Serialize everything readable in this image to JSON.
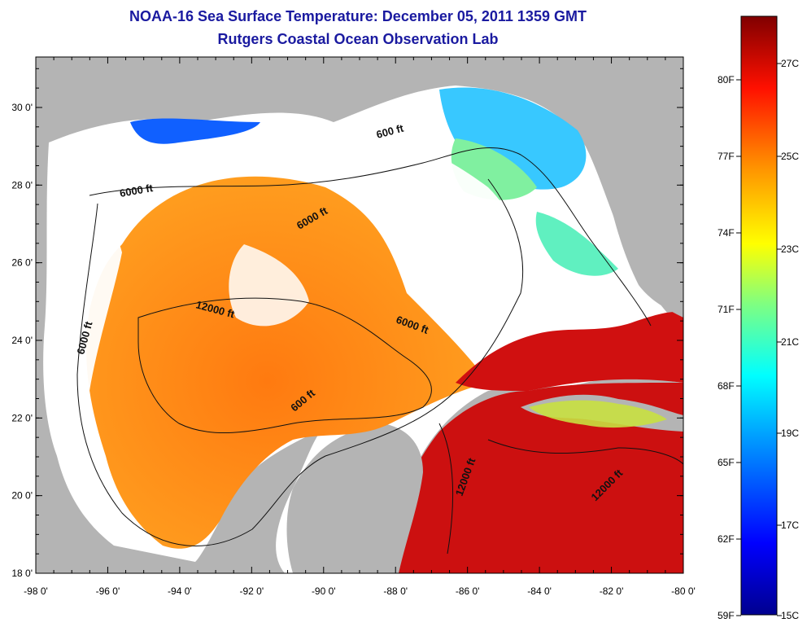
{
  "title": {
    "line1": "NOAA-16 Sea Surface Temperature:  December 05, 2011 1359 GMT",
    "line2": "Rutgers Coastal Ocean Observation Lab"
  },
  "map": {
    "lon_ticks": [
      "-98 0'",
      "-96 0'",
      "-94 0'",
      "-92 0'",
      "-90 0'",
      "-88 0'",
      "-86 0'",
      "-84 0'",
      "-82 0'",
      "-80 0'"
    ],
    "lat_ticks": [
      "18 0'",
      "20 0'",
      "22 0'",
      "24 0'",
      "26 0'",
      "28 0'",
      "30 0'"
    ],
    "contour_labels": [
      "6000 ft",
      "6000 ft",
      "600 ft",
      "6000 ft",
      "12000 ft",
      "6000 ft",
      "600 ft",
      "12000 ft",
      "12000 ft"
    ],
    "colors": {
      "land": "#b4b4b4",
      "cloud": "#ffffff"
    }
  },
  "colorbar": {
    "fahrenheit_labels": [
      "80F",
      "77F",
      "74F",
      "71F",
      "68F",
      "65F",
      "62F",
      "59F"
    ],
    "celsius_labels": [
      "27C",
      "25C",
      "23C",
      "21C",
      "19C",
      "17C",
      "15C"
    ]
  }
}
